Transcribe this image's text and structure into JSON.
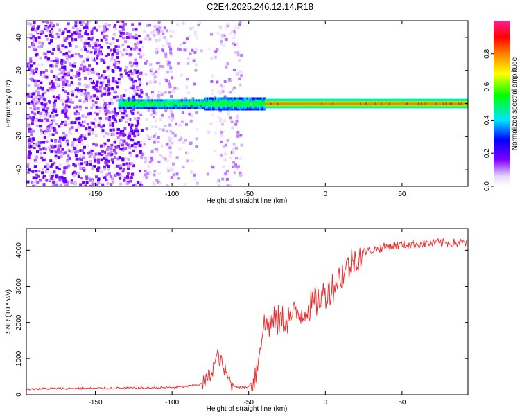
{
  "figure_title": "C2E4.2025.246.12.14.R18",
  "colors": {
    "snr_line": "#ee2c2c",
    "background": "#ffffff"
  },
  "chart_data": [
    {
      "type": "heatmap",
      "title": "",
      "xlabel": "Height of straight line (km)",
      "ylabel": "Frequency (Hz)",
      "xlim": [
        -195,
        93
      ],
      "ylim": [
        -50,
        50
      ],
      "xticks": [
        -150,
        -100,
        -50,
        0,
        50
      ],
      "yticks": [
        -40,
        -20,
        0,
        20,
        40
      ],
      "colorbar": {
        "label": "Normalized spectral amplitude",
        "range": [
          0,
          1
        ],
        "ticks": [
          "0.0",
          "0.2",
          "0.4",
          "0.6",
          "0.8"
        ],
        "tick_values": [
          0.0,
          0.2,
          0.4,
          0.6,
          0.8
        ]
      },
      "description_features": {
        "noise_region_x": [
          -195,
          -55
        ],
        "carrier_start_x": -135,
        "carrier_frequency_hz": 0,
        "carrier_strong_from_x": -40
      }
    },
    {
      "type": "line",
      "title": "",
      "xlabel": "Height of straight line (km)",
      "ylabel": "SNR (10 * v/v)",
      "xlim": [
        -195,
        93
      ],
      "ylim": [
        0,
        4600
      ],
      "xticks": [
        -150,
        -100,
        -50,
        0,
        50
      ],
      "yticks": [
        0,
        1000,
        2000,
        3000,
        4000
      ],
      "series": [
        {
          "name": "SNR",
          "x": [
            -195,
            -180,
            -160,
            -140,
            -120,
            -100,
            -90,
            -80,
            -75,
            -72,
            -70,
            -68,
            -65,
            -62,
            -60,
            -55,
            -50,
            -45,
            -42,
            -40,
            -35,
            -30,
            -25,
            -20,
            -15,
            -10,
            -5,
            0,
            5,
            10,
            15,
            20,
            25,
            30,
            35,
            40,
            50,
            60,
            70,
            80,
            93
          ],
          "values": [
            160,
            170,
            175,
            180,
            185,
            200,
            230,
            300,
            550,
            900,
            1100,
            900,
            600,
            350,
            250,
            200,
            220,
            600,
            1600,
            1900,
            2000,
            2050,
            2100,
            2200,
            2300,
            2450,
            2600,
            2800,
            3000,
            3300,
            3550,
            3800,
            3950,
            4000,
            4050,
            4100,
            4150,
            4170,
            4200,
            4200,
            4200
          ]
        }
      ]
    }
  ]
}
